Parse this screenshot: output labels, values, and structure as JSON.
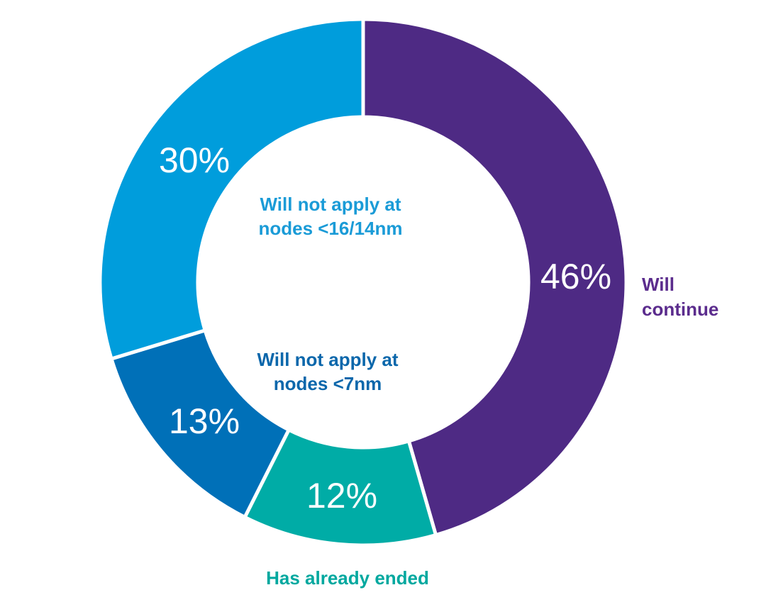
{
  "chart_data": {
    "type": "pie",
    "title": "",
    "donut": true,
    "slices": [
      {
        "label": "Will continue",
        "label_lines": [
          "Will",
          "continue"
        ],
        "value": 46,
        "value_label": "46%",
        "color": "#4e2a84",
        "label_color": "#5b2c8d"
      },
      {
        "label": "Has already ended",
        "label_lines": [
          "Has already ended"
        ],
        "value": 12,
        "value_label": "12%",
        "color": "#00aca6",
        "label_color": "#00a89f"
      },
      {
        "label": "Will not apply at nodes <7nm",
        "label_lines": [
          "Will not apply at",
          "nodes <7nm"
        ],
        "value": 13,
        "value_label": "13%",
        "color": "#0070b8",
        "label_color": "#0b67ab"
      },
      {
        "label": "Will not apply at nodes <16/14nm",
        "label_lines": [
          "Will not apply at",
          "nodes <16/14nm"
        ],
        "value": 30,
        "value_label": "30%",
        "color": "#009ddc",
        "label_color": "#1a9bd7"
      }
    ]
  }
}
